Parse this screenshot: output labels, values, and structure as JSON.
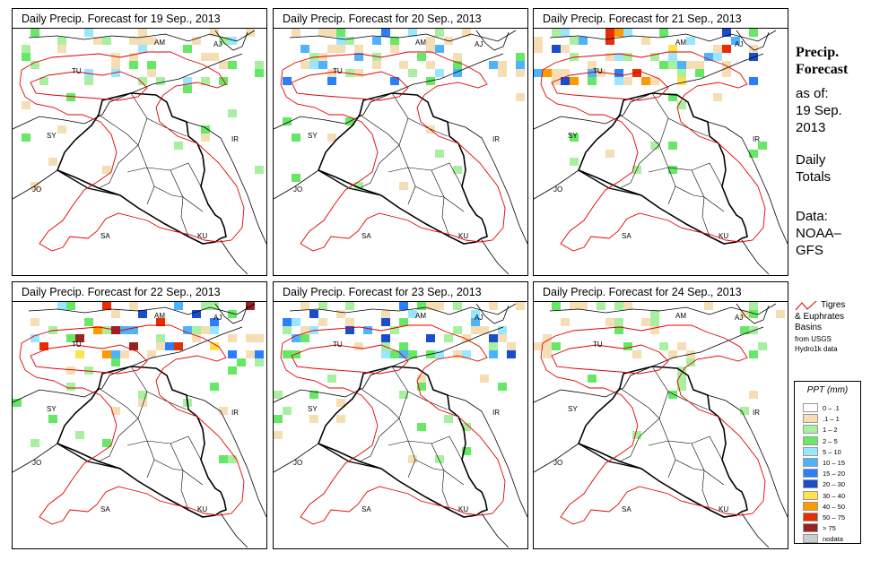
{
  "panels": [
    {
      "title": "Daily Precip. Forecast for  19 Sep., 2013"
    },
    {
      "title": "Daily Precip. Forecast for  20 Sep., 2013"
    },
    {
      "title": "Daily Precip. Forecast for  21 Sep., 2013"
    },
    {
      "title": "Daily Precip. Forecast for  22 Sep., 2013"
    },
    {
      "title": "Daily Precip. Forecast for  23 Sep., 2013"
    },
    {
      "title": "Daily Precip. Forecast for  24 Sep., 2013"
    }
  ],
  "map_labels": {
    "am": "AM",
    "aj": "AJ",
    "tu": "TU",
    "sy": "SY",
    "ir": "IR",
    "jo": "JO",
    "sa": "SA",
    "ku": "KU"
  },
  "side": {
    "title1": "Precip.",
    "title2": "Forecast",
    "asof": "as of:",
    "date1": "19 Sep.",
    "date2": "2013",
    "daily1": "Daily",
    "daily2": "Totals",
    "data1": "Data:",
    "data2": "NOAA–",
    "data3": "GFS"
  },
  "basin_legend": {
    "l1": "Tigres",
    "l2": "& Euphrates",
    "l3": "Basins",
    "l4": "from USGS",
    "l5": "Hydro1k data"
  },
  "ppt_legend": {
    "title": "PPT (mm)",
    "classes": [
      {
        "label": "0 – .1",
        "color": "#ffffff"
      },
      {
        "label": ".1 – 1",
        "color": "#f5deb3"
      },
      {
        "label": "1 – 2",
        "color": "#a8f0a0"
      },
      {
        "label": "2 – 5",
        "color": "#66e866"
      },
      {
        "label": "5 – 10",
        "color": "#99e6ff"
      },
      {
        "label": "10 – 15",
        "color": "#4db3ff"
      },
      {
        "label": "15 – 20",
        "color": "#2a7fff"
      },
      {
        "label": "20 – 30",
        "color": "#1a4dcc"
      },
      {
        "label": "30 – 40",
        "color": "#ffe14d"
      },
      {
        "label": "40 – 50",
        "color": "#ff9900"
      },
      {
        "label": "50 – 75",
        "color": "#e62e00"
      },
      {
        "label": "> 75",
        "color": "#992222"
      },
      {
        "label": "nodata",
        "color": "#cccccc"
      }
    ]
  }
}
